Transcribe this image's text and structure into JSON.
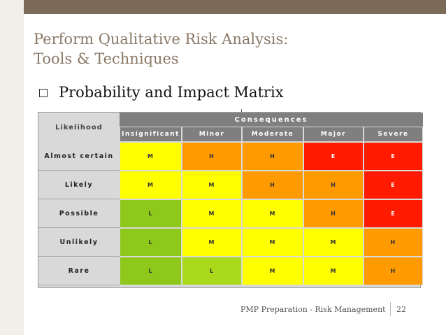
{
  "slide": {
    "title_line1": "Perform Qualitative Risk Analysis:",
    "title_line2": "Tools & Techniques",
    "bullet": "Probability and Impact Matrix",
    "footer": "PMP Preparation - Risk Management",
    "page_number": "22"
  },
  "matrix": {
    "likelihood_header": "Likelihood",
    "consequences_header": "Consequences",
    "columns": [
      "Insignificant",
      "Minor",
      "Moderate",
      "Major",
      "Severe"
    ],
    "rows": [
      {
        "label": "Almost certain",
        "cells": [
          "M",
          "H",
          "H",
          "E",
          "E"
        ]
      },
      {
        "label": "Likely",
        "cells": [
          "M",
          "M",
          "H",
          "H",
          "E"
        ]
      },
      {
        "label": "Possible",
        "cells": [
          "L",
          "M",
          "M",
          "H",
          "E"
        ]
      },
      {
        "label": "Unlikely",
        "cells": [
          "L",
          "M",
          "M",
          "M",
          "H"
        ]
      },
      {
        "label": "Rare",
        "cells": [
          "L",
          "L",
          "M",
          "M",
          "H"
        ]
      }
    ],
    "colors": {
      "L_dark": "#8dc81a",
      "L_light": "#a9d91a",
      "M": "#ffff00",
      "H": "#ff9a00",
      "E": "#ff1a00"
    }
  }
}
